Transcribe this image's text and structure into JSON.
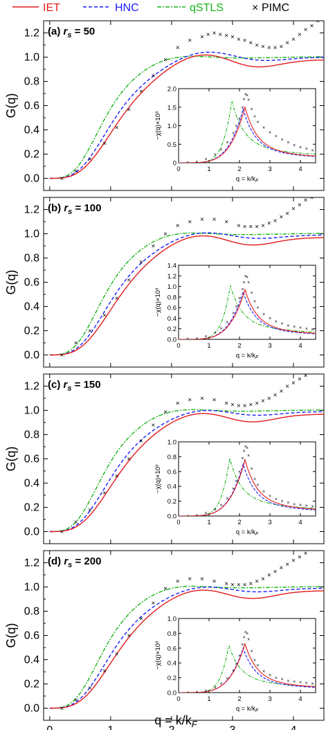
{
  "legend": [
    {
      "name": "IET",
      "color": "#e31a1c",
      "dash": "solid"
    },
    {
      "name": "HNC",
      "color": "#1a1aff",
      "dash": "dashed"
    },
    {
      "name": "qSTLS",
      "color": "#18b418",
      "dash": "dashdot"
    },
    {
      "name": "PIMC",
      "color": "#000000",
      "dash": "marker"
    }
  ],
  "legend_marker": "×",
  "xlabel": "q = k/k_F",
  "ylabel": "G(q)",
  "inset_xlabel": "q = k/k_F",
  "inset_ylabel": "−χ(q)×10³",
  "chart_data": [
    {
      "type": "line",
      "panel": "(a)",
      "title_prefix": "(a) ",
      "rs_label": "r",
      "rs_sub": "s",
      "rs_value": " = 50",
      "xlim": [
        -0.1,
        4.5
      ],
      "ylim": [
        -0.1,
        1.3
      ],
      "xticks": [
        0,
        1,
        2,
        3,
        4
      ],
      "yticks": [
        0.0,
        0.2,
        0.4,
        0.6,
        0.8,
        1.0,
        1.2
      ],
      "ytick_labels": [
        "0.0",
        "0.2",
        "0.4",
        "0.6",
        "0.8",
        "1.0",
        "1.2"
      ],
      "params": {
        "peak": 1.12,
        "peakx": 2.42,
        "tail": 1.03
      },
      "pimc": [
        [
          0.2,
          0.0
        ],
        [
          0.43,
          0.06
        ],
        [
          0.66,
          0.16
        ],
        [
          0.9,
          0.29
        ],
        [
          1.1,
          0.42
        ],
        [
          1.3,
          0.57
        ],
        [
          1.5,
          0.72
        ],
        [
          1.7,
          0.85
        ],
        [
          1.9,
          0.98
        ],
        [
          2.1,
          1.08
        ],
        [
          2.3,
          1.14
        ],
        [
          2.5,
          1.17
        ],
        [
          2.6,
          1.19
        ],
        [
          2.7,
          1.2
        ],
        [
          2.8,
          1.19
        ],
        [
          2.9,
          1.18
        ],
        [
          3.0,
          1.17
        ],
        [
          3.1,
          1.15
        ],
        [
          3.2,
          1.14
        ],
        [
          3.3,
          1.12
        ],
        [
          3.4,
          1.1
        ],
        [
          3.5,
          1.09
        ],
        [
          3.6,
          1.08
        ],
        [
          3.7,
          1.08
        ],
        [
          3.8,
          1.09
        ],
        [
          3.9,
          1.12
        ],
        [
          4.0,
          1.15
        ],
        [
          4.1,
          1.19
        ],
        [
          4.2,
          1.23
        ],
        [
          4.3,
          1.26
        ],
        [
          4.4,
          1.3
        ]
      ],
      "inset": {
        "xlim": [
          0,
          4.5
        ],
        "ylim": [
          0,
          2.0
        ],
        "xticks": [
          0,
          1,
          2,
          3,
          4
        ],
        "yticks": [
          0.0,
          0.5,
          1.0,
          1.5,
          2.0
        ],
        "ytick_labels": [
          "0",
          "0.5",
          "1.0",
          "1.5",
          "2.0"
        ],
        "params": {
          "iet": 1.5,
          "hnc": 1.45,
          "stls": 1.68,
          "stlsx": 1.75,
          "pimc": 1.85
        },
        "pimc": [
          [
            0.3,
            0.01
          ],
          [
            0.6,
            0.03
          ],
          [
            0.9,
            0.1
          ],
          [
            1.2,
            0.22
          ],
          [
            1.4,
            0.36
          ],
          [
            1.6,
            0.55
          ],
          [
            1.8,
            0.8
          ],
          [
            1.9,
            1.0
          ],
          [
            2.0,
            1.2
          ],
          [
            2.1,
            1.5
          ],
          [
            2.15,
            1.72
          ],
          [
            2.2,
            1.85
          ],
          [
            2.25,
            1.82
          ],
          [
            2.3,
            1.7
          ],
          [
            2.4,
            1.45
          ],
          [
            2.5,
            1.25
          ],
          [
            2.6,
            1.1
          ],
          [
            2.8,
            0.95
          ],
          [
            3.0,
            0.82
          ],
          [
            3.2,
            0.72
          ],
          [
            3.4,
            0.63
          ],
          [
            3.6,
            0.55
          ],
          [
            3.8,
            0.48
          ],
          [
            4.0,
            0.42
          ],
          [
            4.2,
            0.38
          ],
          [
            4.4,
            0.34
          ]
        ]
      }
    },
    {
      "type": "line",
      "panel": "(b)",
      "title_prefix": "(b) ",
      "rs_label": "r",
      "rs_sub": "s",
      "rs_value": " = 100",
      "xlim": [
        -0.1,
        4.5
      ],
      "ylim": [
        -0.1,
        1.3
      ],
      "xticks": [
        0,
        1,
        2,
        3,
        4
      ],
      "yticks": [
        0.0,
        0.2,
        0.4,
        0.6,
        0.8,
        1.0,
        1.2
      ],
      "ytick_labels": [
        "0.0",
        "0.2",
        "0.4",
        "0.6",
        "0.8",
        "1.0",
        "1.2"
      ],
      "params": {
        "peak": 1.09,
        "peakx": 2.35,
        "tail": 1.02
      },
      "pimc": [
        [
          0.2,
          0.0
        ],
        [
          0.43,
          0.1
        ],
        [
          0.66,
          0.2
        ],
        [
          0.9,
          0.33
        ],
        [
          1.1,
          0.47
        ],
        [
          1.3,
          0.62
        ],
        [
          1.5,
          0.77
        ],
        [
          1.7,
          0.9
        ],
        [
          1.9,
          1.0
        ],
        [
          2.1,
          1.07
        ],
        [
          2.3,
          1.1
        ],
        [
          2.5,
          1.12
        ],
        [
          2.7,
          1.12
        ],
        [
          2.9,
          1.1
        ],
        [
          3.1,
          1.07
        ],
        [
          3.2,
          1.06
        ],
        [
          3.3,
          1.06
        ],
        [
          3.4,
          1.06
        ],
        [
          3.5,
          1.07
        ],
        [
          3.6,
          1.09
        ],
        [
          3.7,
          1.11
        ],
        [
          3.8,
          1.14
        ],
        [
          3.9,
          1.17
        ],
        [
          4.0,
          1.21
        ],
        [
          4.1,
          1.24
        ],
        [
          4.2,
          1.28
        ],
        [
          4.3,
          1.3
        ]
      ],
      "inset": {
        "xlim": [
          0,
          4.5
        ],
        "ylim": [
          0,
          1.4
        ],
        "xticks": [
          0,
          1,
          2,
          3,
          4
        ],
        "yticks": [
          0.0,
          0.2,
          0.4,
          0.6,
          0.8,
          1.0,
          1.2,
          1.4
        ],
        "ytick_labels": [
          "0.0",
          "0.2",
          "0.4",
          "0.6",
          "0.8",
          "1.0",
          "1.2",
          "1.4"
        ],
        "params": {
          "iet": 0.94,
          "hnc": 0.9,
          "stls": 1.02,
          "stlsx": 1.7,
          "pimc": 1.2
        },
        "pimc": [
          [
            0.3,
            0.01
          ],
          [
            0.6,
            0.02
          ],
          [
            0.9,
            0.06
          ],
          [
            1.2,
            0.13
          ],
          [
            1.4,
            0.21
          ],
          [
            1.6,
            0.33
          ],
          [
            1.8,
            0.5
          ],
          [
            1.9,
            0.62
          ],
          [
            2.0,
            0.78
          ],
          [
            2.1,
            0.95
          ],
          [
            2.15,
            1.08
          ],
          [
            2.2,
            1.2
          ],
          [
            2.25,
            1.18
          ],
          [
            2.3,
            1.08
          ],
          [
            2.4,
            0.88
          ],
          [
            2.5,
            0.72
          ],
          [
            2.6,
            0.6
          ],
          [
            2.8,
            0.48
          ],
          [
            3.0,
            0.4
          ],
          [
            3.2,
            0.34
          ],
          [
            3.4,
            0.3
          ],
          [
            3.6,
            0.26
          ],
          [
            3.8,
            0.24
          ],
          [
            4.0,
            0.22
          ],
          [
            4.2,
            0.2
          ],
          [
            4.4,
            0.19
          ]
        ]
      }
    },
    {
      "type": "line",
      "panel": "(c)",
      "title_prefix": "(c) ",
      "rs_label": "r",
      "rs_sub": "s",
      "rs_value": " = 150",
      "xlim": [
        -0.1,
        4.5
      ],
      "ylim": [
        -0.1,
        1.3
      ],
      "xticks": [
        0,
        1,
        2,
        3,
        4
      ],
      "yticks": [
        0.0,
        0.2,
        0.4,
        0.6,
        0.8,
        1.0,
        1.2
      ],
      "ytick_labels": [
        "0.0",
        "0.2",
        "0.4",
        "0.6",
        "0.8",
        "1.0",
        "1.2"
      ],
      "params": {
        "peak": 1.08,
        "peakx": 2.35,
        "tail": 1.02
      },
      "pimc": [
        [
          0.2,
          0.0
        ],
        [
          0.43,
          0.08
        ],
        [
          0.66,
          0.18
        ],
        [
          0.9,
          0.32
        ],
        [
          1.1,
          0.46
        ],
        [
          1.3,
          0.6
        ],
        [
          1.5,
          0.75
        ],
        [
          1.7,
          0.88
        ],
        [
          1.9,
          0.99
        ],
        [
          2.1,
          1.06
        ],
        [
          2.3,
          1.09
        ],
        [
          2.5,
          1.1
        ],
        [
          2.7,
          1.09
        ],
        [
          2.9,
          1.06
        ],
        [
          3.0,
          1.05
        ],
        [
          3.1,
          1.04
        ],
        [
          3.2,
          1.04
        ],
        [
          3.3,
          1.05
        ],
        [
          3.4,
          1.06
        ],
        [
          3.5,
          1.08
        ],
        [
          3.6,
          1.1
        ],
        [
          3.7,
          1.13
        ],
        [
          3.8,
          1.16
        ],
        [
          3.9,
          1.2
        ],
        [
          4.0,
          1.23
        ],
        [
          4.1,
          1.26
        ],
        [
          4.2,
          1.29
        ]
      ],
      "inset": {
        "xlim": [
          0,
          4.5
        ],
        "ylim": [
          0,
          1.0
        ],
        "xticks": [
          0,
          1,
          2,
          3,
          4
        ],
        "yticks": [
          0.0,
          0.2,
          0.4,
          0.6,
          0.8,
          1.0
        ],
        "ytick_labels": [
          "0.0",
          "0.2",
          "0.4",
          "0.6",
          "0.8",
          "1.0"
        ],
        "params": {
          "iet": 0.76,
          "hnc": 0.7,
          "stls": 0.78,
          "stlsx": 1.68,
          "pimc": 0.94
        },
        "pimc": [
          [
            0.3,
            0.0
          ],
          [
            0.6,
            0.01
          ],
          [
            0.9,
            0.04
          ],
          [
            1.2,
            0.09
          ],
          [
            1.4,
            0.15
          ],
          [
            1.6,
            0.24
          ],
          [
            1.8,
            0.37
          ],
          [
            1.9,
            0.47
          ],
          [
            2.0,
            0.6
          ],
          [
            2.1,
            0.78
          ],
          [
            2.15,
            0.88
          ],
          [
            2.2,
            0.94
          ],
          [
            2.25,
            0.92
          ],
          [
            2.3,
            0.82
          ],
          [
            2.4,
            0.64
          ],
          [
            2.5,
            0.5
          ],
          [
            2.6,
            0.42
          ],
          [
            2.8,
            0.33
          ],
          [
            3.0,
            0.27
          ],
          [
            3.2,
            0.23
          ],
          [
            3.4,
            0.2
          ],
          [
            3.6,
            0.18
          ],
          [
            3.8,
            0.16
          ],
          [
            4.0,
            0.15
          ],
          [
            4.2,
            0.14
          ],
          [
            4.4,
            0.13
          ]
        ]
      }
    },
    {
      "type": "line",
      "panel": "(d)",
      "title_prefix": "(d) ",
      "rs_label": "r",
      "rs_sub": "s",
      "rs_value": " = 200",
      "xlim": [
        -0.1,
        4.5
      ],
      "ylim": [
        -0.1,
        1.3
      ],
      "xticks": [
        0,
        1,
        2,
        3,
        4
      ],
      "yticks": [
        0.0,
        0.2,
        0.4,
        0.6,
        0.8,
        1.0,
        1.2
      ],
      "ytick_labels": [
        "0.0",
        "0.2",
        "0.4",
        "0.6",
        "0.8",
        "1.0",
        "1.2"
      ],
      "params": {
        "peak": 1.08,
        "peakx": 2.35,
        "tail": 1.02
      },
      "pimc": [
        [
          0.2,
          0.0
        ],
        [
          0.43,
          0.07
        ],
        [
          0.66,
          0.17
        ],
        [
          0.9,
          0.31
        ],
        [
          1.1,
          0.45
        ],
        [
          1.3,
          0.6
        ],
        [
          1.5,
          0.74
        ],
        [
          1.7,
          0.87
        ],
        [
          1.9,
          0.99
        ],
        [
          2.1,
          1.05
        ],
        [
          2.3,
          1.07
        ],
        [
          2.5,
          1.07
        ],
        [
          2.7,
          1.05
        ],
        [
          2.9,
          1.03
        ],
        [
          3.0,
          1.02
        ],
        [
          3.1,
          1.02
        ],
        [
          3.2,
          1.02
        ],
        [
          3.3,
          1.03
        ],
        [
          3.4,
          1.05
        ],
        [
          3.5,
          1.07
        ],
        [
          3.6,
          1.1
        ],
        [
          3.7,
          1.13
        ],
        [
          3.8,
          1.16
        ],
        [
          3.9,
          1.19
        ],
        [
          4.0,
          1.22
        ],
        [
          4.1,
          1.25
        ],
        [
          4.2,
          1.28
        ]
      ],
      "inset": {
        "xlim": [
          0,
          4.5
        ],
        "ylim": [
          0,
          1.0
        ],
        "xticks": [
          0,
          1,
          2,
          3,
          4
        ],
        "yticks": [
          0.0,
          0.2,
          0.4,
          0.6,
          0.8,
          1.0
        ],
        "ytick_labels": [
          "0.0",
          "0.2",
          "0.4",
          "0.6",
          "0.8",
          "1.0"
        ],
        "params": {
          "iet": 0.66,
          "hnc": 0.6,
          "stls": 0.64,
          "stlsx": 1.65,
          "pimc": 0.82
        },
        "pimc": [
          [
            0.3,
            0.0
          ],
          [
            0.6,
            0.01
          ],
          [
            0.9,
            0.03
          ],
          [
            1.2,
            0.07
          ],
          [
            1.4,
            0.12
          ],
          [
            1.6,
            0.19
          ],
          [
            1.8,
            0.3
          ],
          [
            1.9,
            0.39
          ],
          [
            2.0,
            0.5
          ],
          [
            2.1,
            0.65
          ],
          [
            2.15,
            0.75
          ],
          [
            2.2,
            0.82
          ],
          [
            2.25,
            0.8
          ],
          [
            2.3,
            0.72
          ],
          [
            2.4,
            0.56
          ],
          [
            2.5,
            0.44
          ],
          [
            2.6,
            0.37
          ],
          [
            2.8,
            0.29
          ],
          [
            3.0,
            0.24
          ],
          [
            3.2,
            0.2
          ],
          [
            3.4,
            0.18
          ],
          [
            3.6,
            0.16
          ],
          [
            3.8,
            0.15
          ],
          [
            4.0,
            0.14
          ],
          [
            4.2,
            0.13
          ],
          [
            4.4,
            0.12
          ]
        ]
      }
    }
  ]
}
